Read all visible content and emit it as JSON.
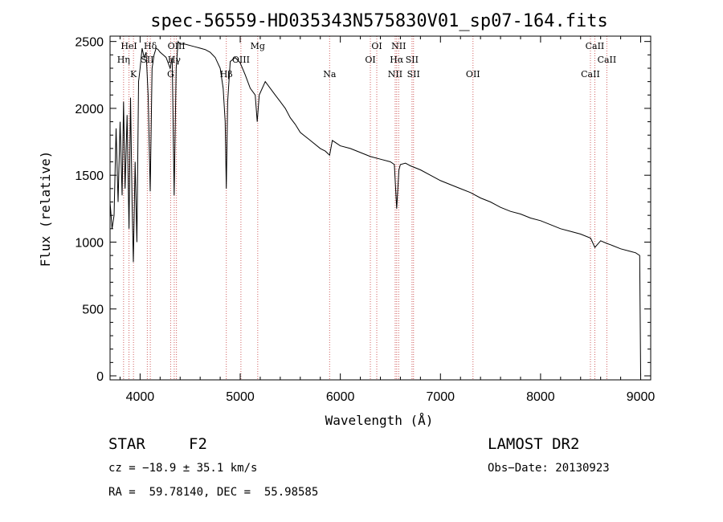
{
  "chart_data": {
    "type": "line",
    "title": "spec-56559-HD035343N575830V01_sp07-164.fits",
    "xlabel": "Wavelength (Å)",
    "ylabel": "Flux (relative)",
    "xlim": [
      3700,
      9100
    ],
    "ylim": [
      -30,
      2540
    ],
    "x_ticks": [
      4000,
      5000,
      6000,
      7000,
      8000,
      9000
    ],
    "y_ticks": [
      0,
      500,
      1000,
      1500,
      2000,
      2500
    ],
    "grid": false,
    "series": [
      {
        "x": [
          3700,
          3720,
          3740,
          3760,
          3780,
          3800,
          3820,
          3835,
          3850,
          3870,
          3889,
          3905,
          3920,
          3933,
          3950,
          3968,
          3985,
          4000,
          4020,
          4040,
          4060,
          4080,
          4101,
          4120,
          4140,
          4160,
          4180,
          4200,
          4230,
          4260,
          4300,
          4320,
          4340,
          4360,
          4380,
          4400,
          4450,
          4500,
          4550,
          4600,
          4650,
          4700,
          4750,
          4800,
          4830,
          4850,
          4861,
          4875,
          4900,
          4950,
          5000,
          5050,
          5100,
          5150,
          5170,
          5190,
          5250,
          5300,
          5350,
          5400,
          5450,
          5500,
          5550,
          5600,
          5700,
          5800,
          5850,
          5893,
          5920,
          6000,
          6100,
          6200,
          6300,
          6400,
          6500,
          6540,
          6563,
          6585,
          6600,
          6650,
          6700,
          6800,
          6900,
          7000,
          7100,
          7200,
          7300,
          7400,
          7500,
          7600,
          7700,
          7800,
          7900,
          8000,
          8100,
          8200,
          8300,
          8400,
          8500,
          8542,
          8600,
          8662,
          8700,
          8800,
          8900,
          8950,
          8990,
          9000
        ],
        "y": [
          1300,
          1100,
          1200,
          1850,
          1300,
          1900,
          1350,
          2050,
          1400,
          1950,
          1100,
          2080,
          1300,
          850,
          1600,
          1000,
          2200,
          2300,
          2450,
          2380,
          2420,
          2100,
          1380,
          2300,
          2400,
          2450,
          2440,
          2420,
          2400,
          2380,
          2300,
          2380,
          1350,
          2300,
          2500,
          2480,
          2480,
          2470,
          2460,
          2450,
          2440,
          2420,
          2380,
          2300,
          2150,
          1900,
          1400,
          2050,
          2350,
          2380,
          2340,
          2250,
          2150,
          2100,
          1900,
          2100,
          2200,
          2150,
          2100,
          2050,
          2000,
          1930,
          1880,
          1820,
          1760,
          1700,
          1680,
          1650,
          1760,
          1720,
          1700,
          1670,
          1640,
          1620,
          1600,
          1580,
          1250,
          1540,
          1580,
          1590,
          1570,
          1540,
          1500,
          1460,
          1430,
          1400,
          1370,
          1330,
          1300,
          1260,
          1230,
          1210,
          1180,
          1160,
          1130,
          1100,
          1080,
          1060,
          1030,
          960,
          1010,
          990,
          980,
          950,
          930,
          920,
          900,
          0
        ]
      }
    ],
    "line_markers": [
      {
        "label": "HeI",
        "wavelength": 3889,
        "row": 0
      },
      {
        "label": "Hη",
        "wavelength": 3835,
        "row": 1
      },
      {
        "label": "K",
        "wavelength": 3934,
        "row": 2
      },
      {
        "label": "Hδ",
        "wavelength": 4102,
        "row": 0
      },
      {
        "label": "SII",
        "wavelength": 4072,
        "row": 1
      },
      {
        "label": "OIII",
        "wavelength": 4363,
        "row": 0
      },
      {
        "label": "Hγ",
        "wavelength": 4341,
        "row": 1
      },
      {
        "label": "G",
        "wavelength": 4305,
        "row": 2
      },
      {
        "label": "Mg",
        "wavelength": 5175,
        "row": 0
      },
      {
        "label": "OIII",
        "wavelength": 5007,
        "row": 1
      },
      {
        "label": "Hβ",
        "wavelength": 4861,
        "row": 2
      },
      {
        "label": "Na",
        "wavelength": 5893,
        "row": 2
      },
      {
        "label": "OI",
        "wavelength": 6364,
        "row": 0
      },
      {
        "label": "OI",
        "wavelength": 6300,
        "row": 1
      },
      {
        "label": "NII",
        "wavelength": 6583,
        "row": 0
      },
      {
        "label": "Hα",
        "wavelength": 6563,
        "row": 1
      },
      {
        "label": "SII",
        "wavelength": 6716,
        "row": 1
      },
      {
        "label": "NII",
        "wavelength": 6548,
        "row": 2
      },
      {
        "label": "SII",
        "wavelength": 6731,
        "row": 2
      },
      {
        "label": "OII",
        "wavelength": 7325,
        "row": 2
      },
      {
        "label": "CaII",
        "wavelength": 8542,
        "row": 0
      },
      {
        "label": "CaII",
        "wavelength": 8662,
        "row": 1
      },
      {
        "label": "CaII",
        "wavelength": 8498,
        "row": 2
      }
    ],
    "marker_line_color": "#d06060"
  },
  "info": {
    "object_class": "STAR",
    "subclass": "F2",
    "survey": "LAMOST DR2",
    "cz": "cz = −18.9 ± 35.1 km/s",
    "obs_date": "Obs−Date: 20130923",
    "coords": "RA =  59.78140, DEC =  55.98585"
  }
}
